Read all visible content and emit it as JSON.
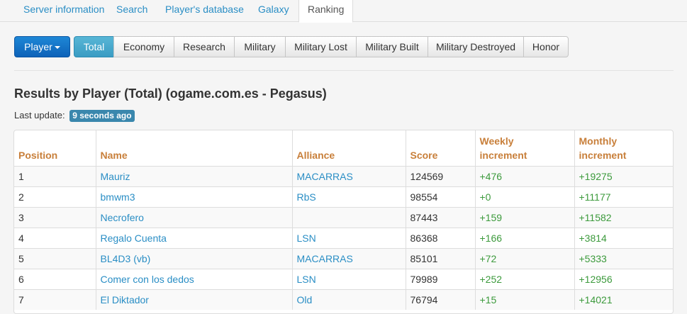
{
  "topnav": {
    "tabs": [
      {
        "label": "Server information"
      },
      {
        "label": "Search"
      },
      {
        "label": "Player's database"
      },
      {
        "label": "Galaxy"
      },
      {
        "label": "Ranking"
      }
    ],
    "active": "Ranking"
  },
  "toolbar": {
    "player_button": "Player",
    "categories": [
      {
        "label": "Total"
      },
      {
        "label": "Economy"
      },
      {
        "label": "Research"
      },
      {
        "label": "Military"
      },
      {
        "label": "Military Lost"
      },
      {
        "label": "Military Built"
      },
      {
        "label": "Military Destroyed"
      },
      {
        "label": "Honor"
      }
    ],
    "active": "Total"
  },
  "main": {
    "title": "Results by Player (Total) (ogame.com.es - Pegasus)",
    "last_update_label": "Last update:",
    "last_update_value": "9 seconds ago"
  },
  "table": {
    "headers": {
      "position": "Position",
      "name": "Name",
      "alliance": "Alliance",
      "score": "Score",
      "weekly_line1": "Weekly",
      "weekly_line2": "increment",
      "monthly_line1": "Monthly",
      "monthly_line2": "increment"
    },
    "rows": [
      {
        "position": "1",
        "name": "Mauriz",
        "alliance": "MACARRAS",
        "score": "124569",
        "weekly": "+476",
        "monthly": "+19275"
      },
      {
        "position": "2",
        "name": "bmwm3",
        "alliance": "RbS",
        "score": "98554",
        "weekly": "+0",
        "monthly": "+11177"
      },
      {
        "position": "3",
        "name": "Necrofero",
        "alliance": "",
        "score": "87443",
        "weekly": "+159",
        "monthly": "+11582"
      },
      {
        "position": "4",
        "name": "Regalo Cuenta",
        "alliance": "LSN",
        "score": "86368",
        "weekly": "+166",
        "monthly": "+3814"
      },
      {
        "position": "5",
        "name": "BL4D3 (vb)",
        "alliance": "MACARRAS",
        "score": "85101",
        "weekly": "+72",
        "monthly": "+5333"
      },
      {
        "position": "6",
        "name": "Comer con los dedos",
        "alliance": "LSN",
        "score": "79989",
        "weekly": "+252",
        "monthly": "+12956"
      },
      {
        "position": "7",
        "name": "El Diktador",
        "alliance": "Old",
        "score": "76794",
        "weekly": "+15",
        "monthly": "+14021"
      }
    ]
  },
  "colors": {
    "link": "#2a8ec5",
    "header": "#c87f3a",
    "increment": "#3c9a3c",
    "primary_button": "#0d62b8",
    "active_category": "#3a9cc3",
    "badge": "#3a87ad"
  }
}
